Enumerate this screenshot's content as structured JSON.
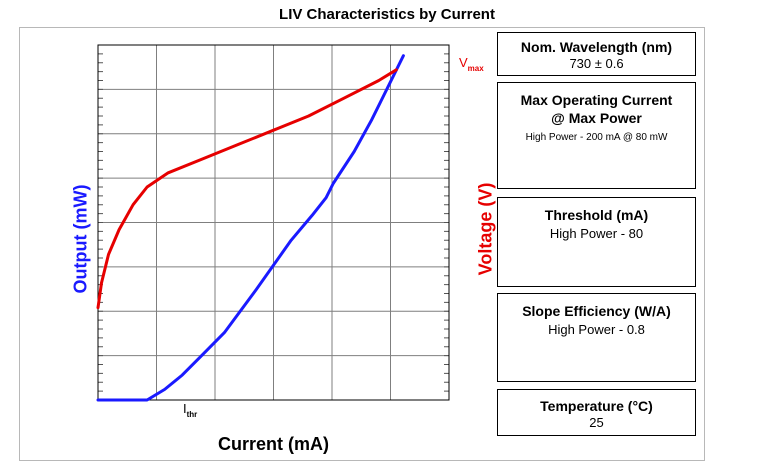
{
  "chart_data": {
    "type": "line",
    "title": "LIV Characteristics by Current",
    "xlabel": "Current (mA)",
    "ylabel_left": "Output (mW)",
    "ylabel_right": "Voltage (V)",
    "grid": true,
    "series": [
      {
        "name": "Output",
        "axis": "left",
        "color": "#1a1aff",
        "x": [
          0.0,
          0.14,
          0.19,
          0.24,
          0.29,
          0.36,
          0.45,
          0.55,
          0.61,
          0.65,
          0.67,
          0.73,
          0.78,
          0.87
        ],
        "y": [
          0.0,
          0.0,
          0.03,
          0.07,
          0.12,
          0.19,
          0.31,
          0.45,
          0.52,
          0.57,
          0.61,
          0.7,
          0.79,
          0.97
        ]
      },
      {
        "name": "Voltage",
        "axis": "right",
        "color": "#e60000",
        "x": [
          0.0,
          0.01,
          0.03,
          0.06,
          0.1,
          0.14,
          0.2,
          0.3,
          0.4,
          0.5,
          0.6,
          0.7,
          0.8,
          0.85
        ],
        "y": [
          0.26,
          0.33,
          0.41,
          0.48,
          0.55,
          0.6,
          0.64,
          0.68,
          0.72,
          0.76,
          0.8,
          0.85,
          0.9,
          0.93
        ]
      }
    ],
    "annotations": {
      "threshold_marker": "I",
      "threshold_sub": "thr",
      "vmax_marker": "V",
      "vmax_sub": "max"
    }
  },
  "specs": {
    "wavelength": {
      "title": "Nom. Wavelength (nm)",
      "value": "730 ± 0.6"
    },
    "max_current": {
      "title_line1": "Max Operating Current",
      "title_line2": "@ Max Power",
      "value": "High Power - 200 mA @ 80 mW"
    },
    "threshold": {
      "title": "Threshold (mA)",
      "value": "High Power - 80"
    },
    "slope": {
      "title": "Slope Efficiency (W/A)",
      "value": "High Power - 0.8"
    },
    "temperature": {
      "title": "Temperature (°C)",
      "value": "25"
    }
  }
}
